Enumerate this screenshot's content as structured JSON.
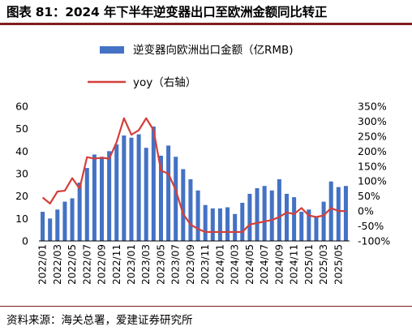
{
  "title": "图表 81：2024 年下半年逆变器出口至欧洲金额同比转正",
  "source": "资料来源：海关总署，爱建证券研究所",
  "colors": {
    "bar": "#4472c4",
    "line": "#d43f3a",
    "rule": "#7f1d1d"
  },
  "chart_data": {
    "type": "bar",
    "categories": [
      "2022/01",
      "2022/02",
      "2022/03",
      "2022/04",
      "2022/05",
      "2022/06",
      "2022/07",
      "2022/08",
      "2022/09",
      "2022/10",
      "2022/11",
      "2022/12",
      "2023/01",
      "2023/02",
      "2023/03",
      "2023/04",
      "2023/05",
      "2023/06",
      "2023/07",
      "2023/08",
      "2023/09",
      "2023/10",
      "2023/11",
      "2023/12",
      "2024/01",
      "2024/02",
      "2024/03",
      "2024/04",
      "2024/05",
      "2024/06",
      "2024/07",
      "2024/08",
      "2024/09",
      "2024/10",
      "2024/11",
      "2024/12",
      "2025/01",
      "2025/02",
      "2025/03",
      "2025/04",
      "2025/05",
      "2025/06"
    ],
    "x_tick_labels": [
      "2022/01",
      "2022/03",
      "2022/05",
      "2022/07",
      "2022/09",
      "2022/11",
      "2023/01",
      "2023/03",
      "2023/05",
      "2023/07",
      "2023/09",
      "2023/11",
      "2024/01",
      "2024/03",
      "2024/05",
      "2024/07",
      "2024/09",
      "2024/11",
      "2025/01",
      "2025/03",
      "2025/05"
    ],
    "series": [
      {
        "name": "逆变器向欧洲出口金额（亿RMB)",
        "type": "bar",
        "axis": "left",
        "values": [
          13,
          10,
          14,
          17.5,
          19,
          26,
          32.5,
          38.5,
          37.5,
          40,
          43,
          47,
          46,
          47.5,
          41.5,
          51,
          38,
          42.5,
          37.5,
          32,
          27.5,
          22.5,
          16,
          14.5,
          14.5,
          15,
          12,
          17,
          21,
          23.5,
          24.5,
          22.5,
          27.5,
          21,
          19.5,
          13,
          14,
          11,
          17.5,
          26.5,
          24,
          24.5
        ]
      },
      {
        "name": "yoy（右轴）",
        "type": "line",
        "axis": "right",
        "values": [
          45,
          25,
          65,
          68,
          110,
          75,
          180,
          175,
          178,
          175,
          230,
          310,
          255,
          270,
          310,
          270,
          135,
          125,
          70,
          -10,
          -45,
          -60,
          -70,
          -70,
          -70,
          -70,
          -70,
          -70,
          -45,
          -40,
          -35,
          -30,
          -20,
          -5,
          -10,
          10,
          -15,
          -20,
          -15,
          10,
          0,
          0
        ]
      }
    ],
    "ylim_left": [
      0,
      60
    ],
    "yticks_left": [
      "0",
      "10",
      "20",
      "30",
      "40",
      "50",
      "60"
    ],
    "ylim_right": [
      -100,
      350
    ],
    "yticks_right": [
      "-100%",
      "-50%",
      "0%",
      "50%",
      "100%",
      "150%",
      "200%",
      "250%",
      "300%",
      "350%"
    ],
    "grid": false,
    "legend_position": "top"
  }
}
